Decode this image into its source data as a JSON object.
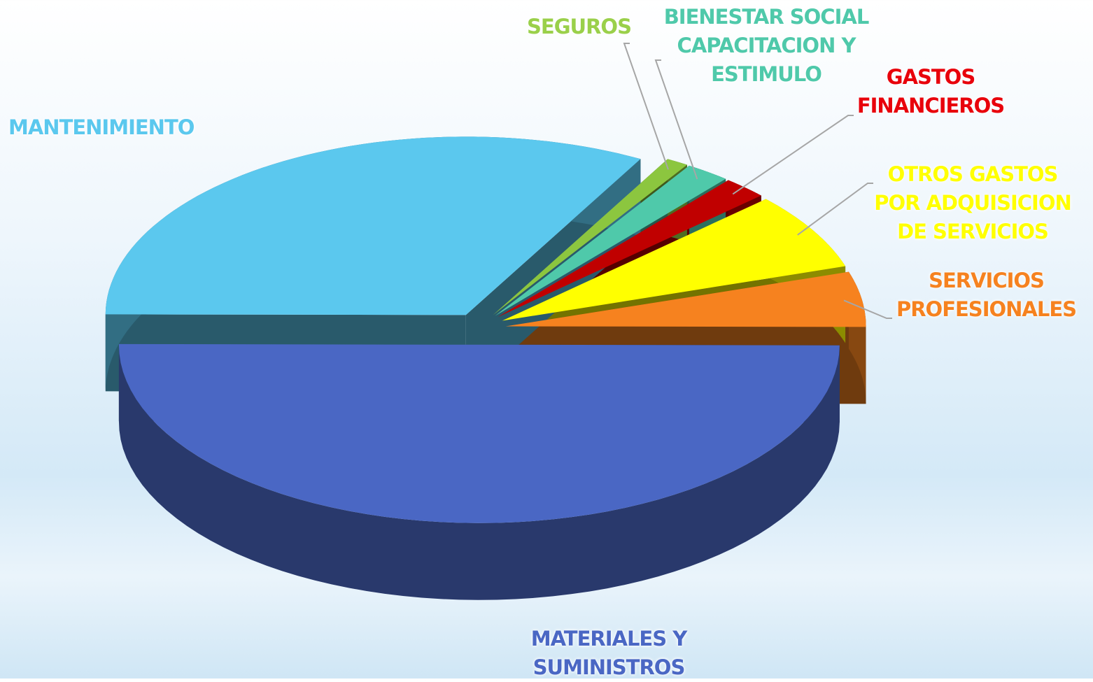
{
  "chart_data": {
    "type": "pie3d",
    "categories": [
      "SEGUROS",
      "BIENESTAR SOCIAL CAPACITACION Y ESTIMULO",
      "GASTOS FINANCIEROS",
      "OTROS GASTOS POR ADQUISICION DE SERVICIOS",
      "SERVICIOS PROFESIONALES",
      "MATERIALES Y SUMINISTROS",
      "MANTENIMIENTO"
    ],
    "values": [
      1,
      2,
      2,
      7,
      5,
      50,
      33
    ],
    "colors": [
      "#8cc63f",
      "#4fc9aa",
      "#c00000",
      "#ffff00",
      "#f6821f",
      "#4a67c4",
      "#5bc8ee"
    ],
    "label_colors": [
      "#9ad04a",
      "#4fc9aa",
      "#e8000b",
      "#ffff00",
      "#f6821f",
      "#4a67c4",
      "#5bc8ee"
    ]
  }
}
